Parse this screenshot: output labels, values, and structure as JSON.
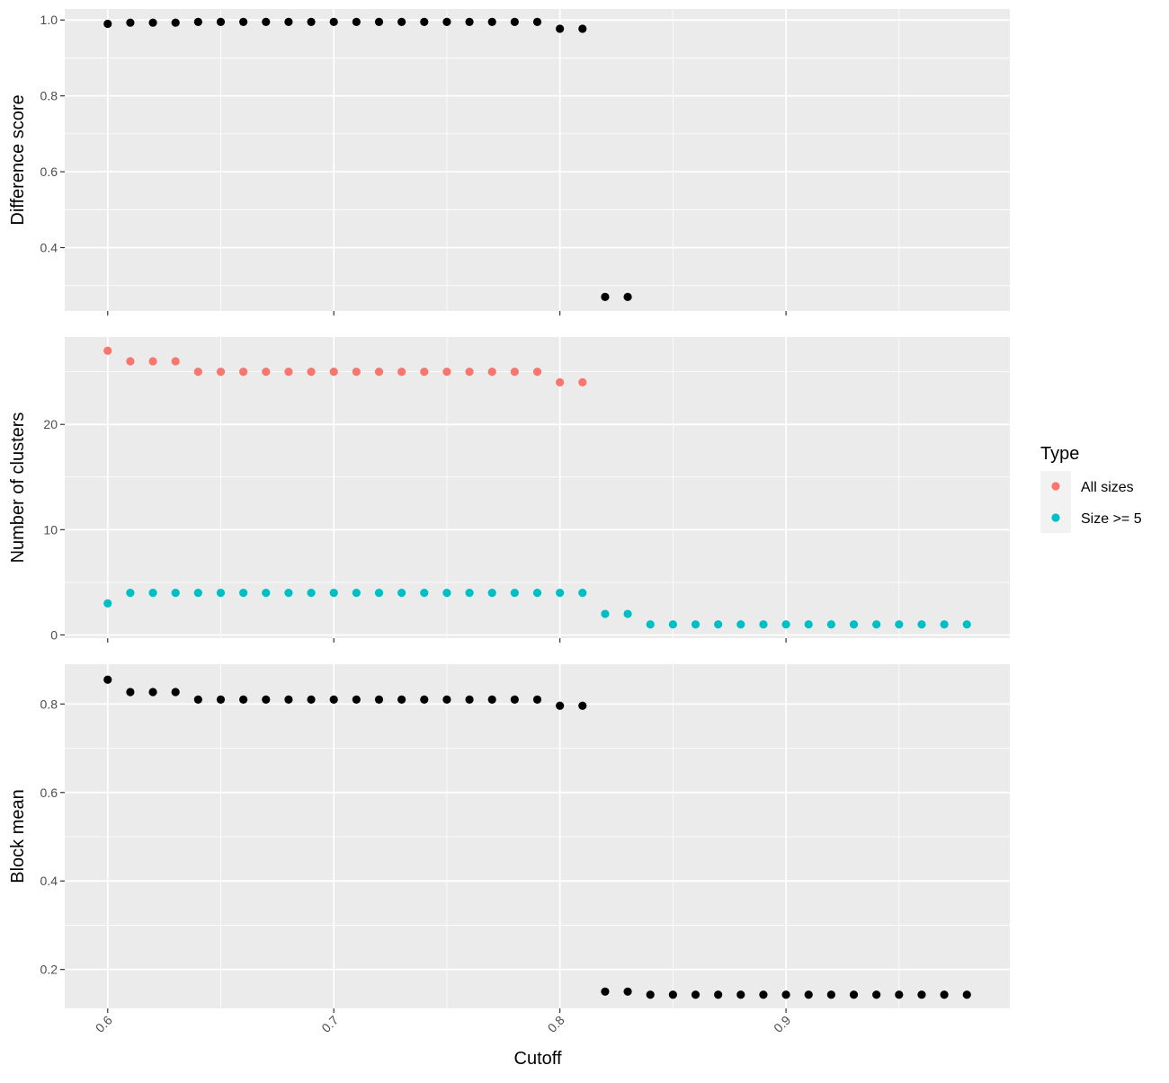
{
  "chart_data": {
    "type": "scatter",
    "layout": "vertically stacked panels sharing x axis",
    "xlabel": "Cutoff",
    "x_ticks": [
      "0.6",
      "0.7",
      "0.8",
      "0.9"
    ],
    "xlim": [
      0.581,
      0.999
    ],
    "grid": true,
    "panel_background": "#ebebeb",
    "grid_color": "#ffffff",
    "legend": {
      "title": "Type",
      "placement": "right",
      "entries": [
        {
          "label": "All sizes",
          "color": "#f8766d"
        },
        {
          "label": "Size >= 5",
          "color": "#00bfc4"
        }
      ]
    },
    "panels": [
      {
        "ylabel": "Difference score",
        "ylim": [
          0.233,
          1.029
        ],
        "y_ticks": [
          "0.4",
          "0.6",
          "0.8",
          "1.0"
        ],
        "series": [
          {
            "color": "#000000",
            "x": [
              0.6,
              0.61,
              0.62,
              0.63,
              0.64,
              0.65,
              0.66,
              0.67,
              0.68,
              0.69,
              0.7,
              0.71,
              0.72,
              0.73,
              0.74,
              0.75,
              0.76,
              0.77,
              0.78,
              0.79,
              0.8,
              0.81,
              0.82,
              0.83
            ],
            "y": [
              0.99,
              0.993,
              0.993,
              0.993,
              0.995,
              0.995,
              0.995,
              0.995,
              0.995,
              0.995,
              0.995,
              0.995,
              0.995,
              0.995,
              0.995,
              0.995,
              0.995,
              0.995,
              0.995,
              0.995,
              0.977,
              0.977,
              0.27,
              0.27
            ]
          }
        ]
      },
      {
        "ylabel": "Number of clusters",
        "ylim": [
          -0.3,
          28.3
        ],
        "y_ticks": [
          "0",
          "10",
          "20"
        ],
        "series": [
          {
            "name": "All sizes",
            "color": "#f8766d",
            "x": [
              0.6,
              0.61,
              0.62,
              0.63,
              0.64,
              0.65,
              0.66,
              0.67,
              0.68,
              0.69,
              0.7,
              0.71,
              0.72,
              0.73,
              0.74,
              0.75,
              0.76,
              0.77,
              0.78,
              0.79,
              0.8,
              0.81
            ],
            "y": [
              27,
              26,
              26,
              26,
              25,
              25,
              25,
              25,
              25,
              25,
              25,
              25,
              25,
              25,
              25,
              25,
              25,
              25,
              25,
              25,
              24,
              24
            ]
          },
          {
            "name": "Size >= 5",
            "color": "#00bfc4",
            "x": [
              0.6,
              0.61,
              0.62,
              0.63,
              0.64,
              0.65,
              0.66,
              0.67,
              0.68,
              0.69,
              0.7,
              0.71,
              0.72,
              0.73,
              0.74,
              0.75,
              0.76,
              0.77,
              0.78,
              0.79,
              0.8,
              0.81,
              0.82,
              0.83,
              0.84,
              0.85,
              0.86,
              0.87,
              0.88,
              0.89,
              0.9,
              0.91,
              0.92,
              0.93,
              0.94,
              0.95,
              0.96,
              0.97,
              0.98
            ],
            "y": [
              3,
              4,
              4,
              4,
              4,
              4,
              4,
              4,
              4,
              4,
              4,
              4,
              4,
              4,
              4,
              4,
              4,
              4,
              4,
              4,
              4,
              4,
              2,
              2,
              1,
              1,
              1,
              1,
              1,
              1,
              1,
              1,
              1,
              1,
              1,
              1,
              1,
              1,
              1
            ]
          }
        ]
      },
      {
        "ylabel": "Block mean",
        "ylim": [
          0.112,
          0.89
        ],
        "y_ticks": [
          "0.2",
          "0.4",
          "0.6",
          "0.8"
        ],
        "series": [
          {
            "color": "#000000",
            "x": [
              0.6,
              0.61,
              0.62,
              0.63,
              0.64,
              0.65,
              0.66,
              0.67,
              0.68,
              0.69,
              0.7,
              0.71,
              0.72,
              0.73,
              0.74,
              0.75,
              0.76,
              0.77,
              0.78,
              0.79,
              0.8,
              0.81,
              0.82,
              0.83,
              0.84,
              0.85,
              0.86,
              0.87,
              0.88,
              0.89,
              0.9,
              0.91,
              0.92,
              0.93,
              0.94,
              0.95,
              0.96,
              0.97,
              0.98
            ],
            "y": [
              0.855,
              0.827,
              0.827,
              0.827,
              0.81,
              0.81,
              0.81,
              0.81,
              0.81,
              0.81,
              0.81,
              0.81,
              0.81,
              0.81,
              0.81,
              0.81,
              0.81,
              0.81,
              0.81,
              0.81,
              0.796,
              0.796,
              0.15,
              0.15,
              0.143,
              0.143,
              0.143,
              0.143,
              0.143,
              0.143,
              0.143,
              0.143,
              0.143,
              0.143,
              0.143,
              0.143,
              0.143,
              0.143,
              0.143
            ]
          }
        ]
      }
    ]
  }
}
